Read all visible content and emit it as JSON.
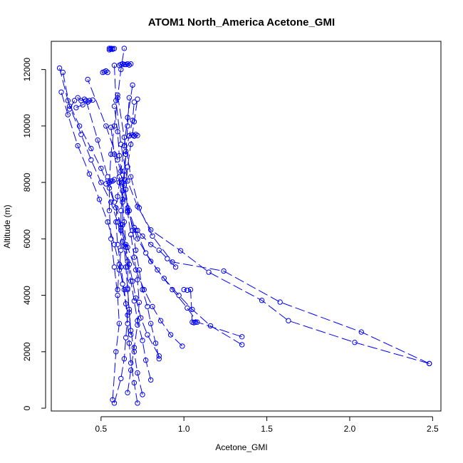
{
  "chart_data": {
    "type": "line",
    "title": "ATOM1 North_America Acetone_GMI",
    "xlabel": "Acetone_GMI",
    "ylabel": "Altitude (m)",
    "xlim": [
      0.2,
      2.55
    ],
    "ylim": [
      -100,
      13000
    ],
    "xticks": [
      0.5,
      1.0,
      1.5,
      2.0,
      2.5
    ],
    "xtick_labels": [
      "0.5",
      "1.0",
      "1.5",
      "2.0",
      "2.5"
    ],
    "yticks": [
      0,
      2000,
      4000,
      6000,
      8000,
      10000,
      12000
    ],
    "ytick_labels": [
      "0",
      "2000",
      "4000",
      "6000",
      "8000",
      "10000",
      "12000"
    ],
    "grid": false,
    "line_style": "dashed lines with open circle markers",
    "color": "#0000ff",
    "series": [
      {
        "x": [
          2.48,
          2.03,
          1.63,
          1.47,
          1.15,
          0.98,
          0.8,
          0.72,
          0.66,
          0.62,
          0.59,
          0.58
        ],
        "y": [
          1580,
          2330,
          3100,
          3820,
          4820,
          5580,
          6320,
          7150,
          8050,
          9350,
          10900,
          12150
        ]
      },
      {
        "x": [
          2.48,
          2.07,
          1.58,
          1.24,
          0.93,
          0.81,
          0.73,
          0.68,
          0.64,
          0.6
        ],
        "y": [
          1580,
          2700,
          3760,
          4860,
          5180,
          6100,
          7100,
          8200,
          9600,
          11100
        ]
      },
      {
        "x": [
          1.35,
          1.16,
          1.05,
          0.97,
          0.88,
          0.8,
          0.72,
          0.66,
          0.61,
          0.58,
          0.56
        ],
        "y": [
          2250,
          2920,
          3500,
          4000,
          4600,
          5200,
          6000,
          7000,
          8000,
          9000,
          9950
        ]
      },
      {
        "x": [
          1.35,
          1.08,
          1.02,
          0.93,
          0.84,
          0.77,
          0.71,
          0.66,
          0.63,
          0.61,
          0.6,
          0.58
        ],
        "y": [
          2530,
          3050,
          3550,
          4200,
          4900,
          5500,
          6300,
          7100,
          8000,
          8950,
          9800,
          10700
        ]
      },
      {
        "x": [
          0.99,
          0.92,
          0.86,
          0.81,
          0.76,
          0.71,
          0.66,
          0.62,
          0.58,
          0.54,
          0.48,
          0.41
        ],
        "y": [
          2200,
          2600,
          3100,
          3600,
          4200,
          4900,
          5700,
          6500,
          7300,
          8200,
          9500,
          10900
        ]
      },
      {
        "x": [
          0.85,
          0.83,
          0.8,
          0.78,
          0.75,
          0.73,
          0.71,
          0.69,
          0.67,
          0.64,
          0.6,
          0.53,
          0.42
        ],
        "y": [
          1750,
          2300,
          3000,
          3600,
          4200,
          4900,
          5600,
          6300,
          7000,
          7900,
          8800,
          10000,
          11650
        ]
      },
      {
        "x": [
          0.85,
          0.78,
          0.74,
          0.71,
          0.69,
          0.67,
          0.65,
          0.62,
          0.59,
          0.55,
          0.5,
          0.44,
          0.37,
          0.3,
          0.25
        ],
        "y": [
          1850,
          2600,
          3200,
          3900,
          4500,
          5100,
          5700,
          6400,
          7100,
          7800,
          8500,
          9200,
          10000,
          10900,
          12050
        ]
      },
      {
        "x": [
          0.8,
          0.77,
          0.75,
          0.72,
          0.7,
          0.68,
          0.66,
          0.63,
          0.6,
          0.56,
          0.5,
          0.44,
          0.38,
          0.31,
          0.27
        ],
        "y": [
          1000,
          1700,
          2400,
          3100,
          3800,
          4500,
          5200,
          5900,
          6600,
          7300,
          8000,
          8800,
          9700,
          10700,
          11900
        ]
      },
      {
        "x": [
          0.72,
          0.7,
          0.68,
          0.67,
          0.66,
          0.65,
          0.63,
          0.61,
          0.58,
          0.54,
          0.49,
          0.43,
          0.36,
          0.3,
          0.26
        ],
        "y": [
          180,
          900,
          1600,
          2300,
          3000,
          3700,
          4400,
          5100,
          5800,
          6600,
          7400,
          8300,
          9300,
          10400,
          11200
        ]
      },
      {
        "x": [
          0.58,
          0.62,
          0.64,
          0.65,
          0.66,
          0.64,
          0.62,
          0.6,
          0.59,
          0.6,
          0.62,
          0.64,
          0.66,
          0.69
        ],
        "y": [
          180,
          1050,
          1750,
          2500,
          3300,
          4200,
          5000,
          5800,
          6600,
          7500,
          8400,
          9300,
          10300,
          11450
        ]
      },
      {
        "x": [
          0.75,
          0.72,
          0.7,
          0.68,
          0.67,
          0.66,
          0.65,
          0.64,
          0.63,
          0.63,
          0.64,
          0.65,
          0.66,
          0.67
        ],
        "y": [
          480,
          1250,
          2000,
          2750,
          3500,
          4250,
          5000,
          5750,
          6500,
          7300,
          8100,
          9000,
          10000,
          11000
        ]
      },
      {
        "x": [
          0.66,
          0.68,
          0.7,
          0.72,
          0.73,
          0.72,
          0.7,
          0.68,
          0.66,
          0.65,
          0.66,
          0.68,
          0.7,
          0.72
        ],
        "y": [
          550,
          1350,
          2150,
          2950,
          3750,
          4550,
          5350,
          6150,
          6950,
          7750,
          8550,
          9350,
          10150,
          10950
        ]
      },
      {
        "x": [
          0.57,
          0.59,
          0.61,
          0.6,
          0.58,
          0.56,
          0.55,
          0.55,
          0.56,
          0.58,
          0.6,
          0.62,
          0.64
        ],
        "y": [
          300,
          2000,
          3000,
          4000,
          5000,
          6000,
          7000,
          8000,
          9000,
          10000,
          11000,
          12000,
          12750
        ]
      },
      {
        "x": [
          0.6,
          0.61,
          0.62,
          0.62,
          0.62,
          0.63,
          0.64,
          0.65,
          0.67,
          0.69,
          0.7
        ],
        "y": [
          4200,
          4900,
          5600,
          6300,
          7000,
          7700,
          8400,
          9100,
          9650,
          10200,
          10850
        ]
      },
      {
        "x": [
          0.68,
          0.67,
          0.66,
          0.66,
          0.65,
          0.64,
          0.63,
          0.61
        ],
        "y": [
          2600,
          3400,
          4200,
          5000,
          5800,
          6600,
          7400,
          8200
        ]
      },
      {
        "x": [
          0.55,
          0.56,
          0.56,
          0.57,
          0.55,
          0.57,
          0.58
        ],
        "y": [
          12750,
          12750,
          12720,
          12740,
          12700,
          12720,
          12740
        ]
      },
      {
        "x": [
          0.62,
          0.61,
          0.63,
          0.64,
          0.66,
          0.67,
          0.68,
          0.65
        ],
        "y": [
          12180,
          12150,
          12200,
          12180,
          12200,
          12160,
          12200,
          12180
        ]
      },
      {
        "x": [
          0.31,
          0.34,
          0.36,
          0.38,
          0.4,
          0.43,
          0.45,
          0.42,
          0.39,
          0.35
        ],
        "y": [
          10600,
          10900,
          11000,
          10900,
          10950,
          10900,
          10920,
          10850,
          10750,
          10650
        ]
      },
      {
        "x": [
          0.53,
          0.55,
          0.57,
          0.58,
          0.56,
          0.55
        ],
        "y": [
          7950,
          8000,
          8050,
          8100,
          8050,
          8000
        ]
      },
      {
        "x": [
          0.67,
          0.69,
          0.7,
          0.71,
          0.72,
          0.7
        ],
        "y": [
          9650,
          9680,
          9650,
          9700,
          9660,
          9640
        ]
      },
      {
        "x": [
          0.51,
          0.52,
          0.53,
          0.54
        ],
        "y": [
          11900,
          11920,
          11950,
          11900
        ]
      },
      {
        "x": [
          1.07,
          1.06,
          1.05,
          1.04,
          1.02,
          1.0
        ],
        "y": [
          3050,
          3030,
          3050,
          4200,
          4180,
          4200
        ]
      },
      {
        "x": [
          0.95,
          0.9,
          0.85,
          0.8,
          0.75,
          0.72,
          0.7
        ],
        "y": [
          5000,
          5300,
          5600,
          5800,
          6100,
          6300,
          6400
        ]
      }
    ]
  }
}
